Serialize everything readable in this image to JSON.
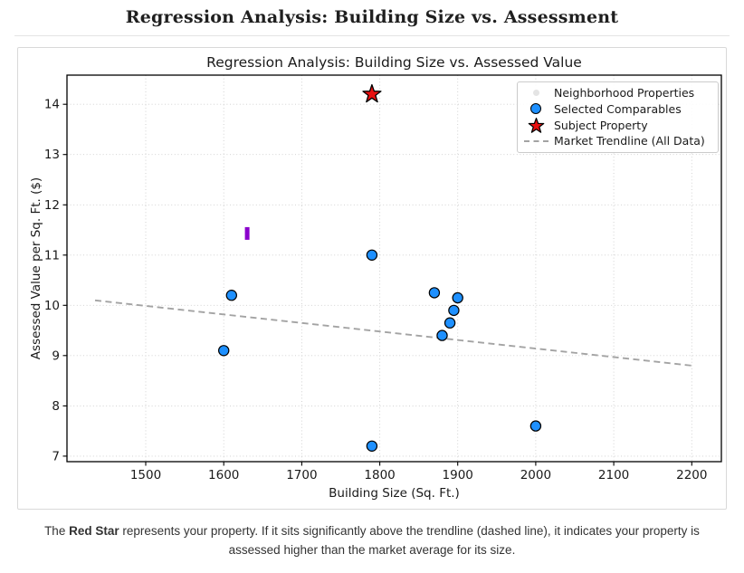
{
  "page": {
    "title": "Regression Analysis: Building Size vs. Assessment",
    "caption": {
      "prefix": "The ",
      "bold": "Red Star",
      "suffix": " represents your property. If it sits significantly above the trendline (dashed line), it indicates your property is assessed higher than the market average for its size."
    }
  },
  "chart_data": {
    "type": "scatter",
    "title": "Regression Analysis: Building Size vs. Assessed Value",
    "xlabel": "Building Size (Sq. Ft.)",
    "ylabel": "Assessed Value per Sq. Ft. ($)",
    "xlim": [
      1399,
      2238
    ],
    "ylim": [
      6.89,
      14.58
    ],
    "xticks": [
      1500,
      1600,
      1700,
      1800,
      1900,
      2000,
      2100,
      2200
    ],
    "yticks": [
      7,
      8,
      9,
      10,
      11,
      12,
      13,
      14
    ],
    "grid": true,
    "grid_style": "dotted",
    "grid_color": "#cdcdcd",
    "spine_color": "#000000",
    "text_color": "#1a1a1a",
    "legend_position": "upper-right",
    "series": [
      {
        "name": "Neighborhood Properties",
        "type": "scatter",
        "marker": "dot-small",
        "color": "#e4e4e4",
        "edge": "none",
        "points": []
      },
      {
        "name": "Selected Comparables",
        "type": "scatter",
        "marker": "circle",
        "color": "#1e90ff",
        "edge": "#000000",
        "points": [
          [
            1600,
            9.1
          ],
          [
            1610,
            10.2
          ],
          [
            1790,
            7.2
          ],
          [
            1790,
            11.0
          ],
          [
            1870,
            10.25
          ],
          [
            1880,
            9.4
          ],
          [
            1890,
            9.65
          ],
          [
            1895,
            9.9
          ],
          [
            1900,
            10.15
          ],
          [
            2000,
            7.6
          ]
        ]
      },
      {
        "name": "Subject Property",
        "type": "scatter",
        "marker": "star",
        "color": "#e81010",
        "edge": "#000000",
        "points": [
          [
            1790,
            14.2
          ]
        ]
      },
      {
        "name": "Market Trendline (All Data)",
        "type": "line",
        "style": "dashed",
        "color": "#a3a3a3",
        "points": [
          [
            1435,
            10.1
          ],
          [
            2200,
            8.8
          ]
        ]
      }
    ],
    "annotation_marker": {
      "x": 1630,
      "y": 11.43,
      "color": "#8a00cc",
      "shape": "vertical-bar"
    }
  }
}
